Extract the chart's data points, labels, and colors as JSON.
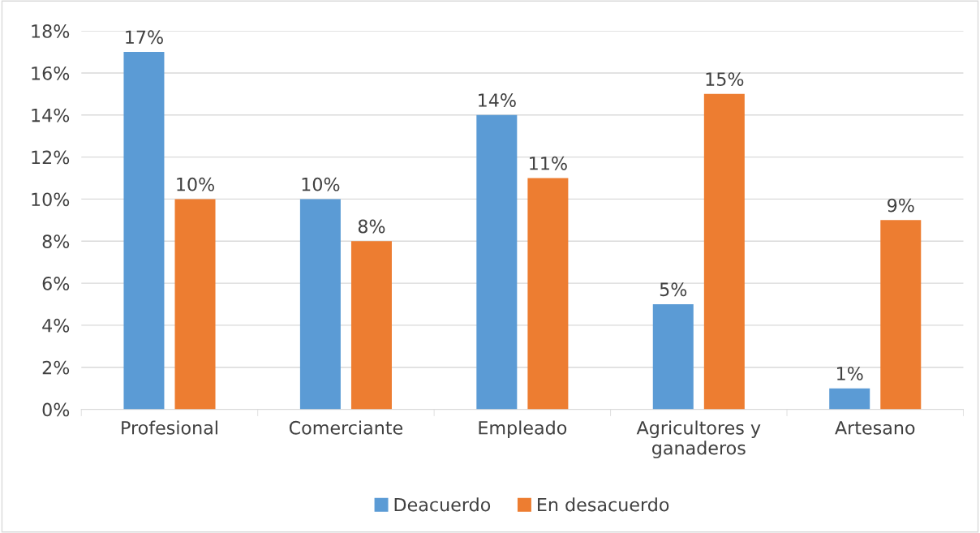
{
  "chart_data": {
    "type": "bar",
    "categories": [
      "Profesional",
      "Comerciante",
      "Empleado",
      "Agricultores y\nganaderos",
      "Artesano"
    ],
    "series": [
      {
        "name": "Deacuerdo",
        "color": "#5b9bd5",
        "values": [
          17,
          10,
          14,
          5,
          1
        ],
        "value_labels": [
          "17%",
          "10%",
          "14%",
          "5%",
          "1%"
        ]
      },
      {
        "name": "En desacuerdo",
        "color": "#ed7d31",
        "values": [
          10,
          8,
          11,
          15,
          9
        ],
        "value_labels": [
          "10%",
          "8%",
          "11%",
          "15%",
          "9%"
        ]
      }
    ],
    "ylim": [
      0,
      18
    ],
    "yticks": [
      {
        "value": 0,
        "label": "0%"
      },
      {
        "value": 2,
        "label": "2%"
      },
      {
        "value": 4,
        "label": "4%"
      },
      {
        "value": 6,
        "label": "6%"
      },
      {
        "value": 8,
        "label": "8%"
      },
      {
        "value": 10,
        "label": "10%"
      },
      {
        "value": 12,
        "label": "12%"
      },
      {
        "value": 14,
        "label": "14%"
      },
      {
        "value": 16,
        "label": "16%"
      },
      {
        "value": 18,
        "label": "18%"
      }
    ],
    "grid": "y",
    "legend": "bottom"
  }
}
